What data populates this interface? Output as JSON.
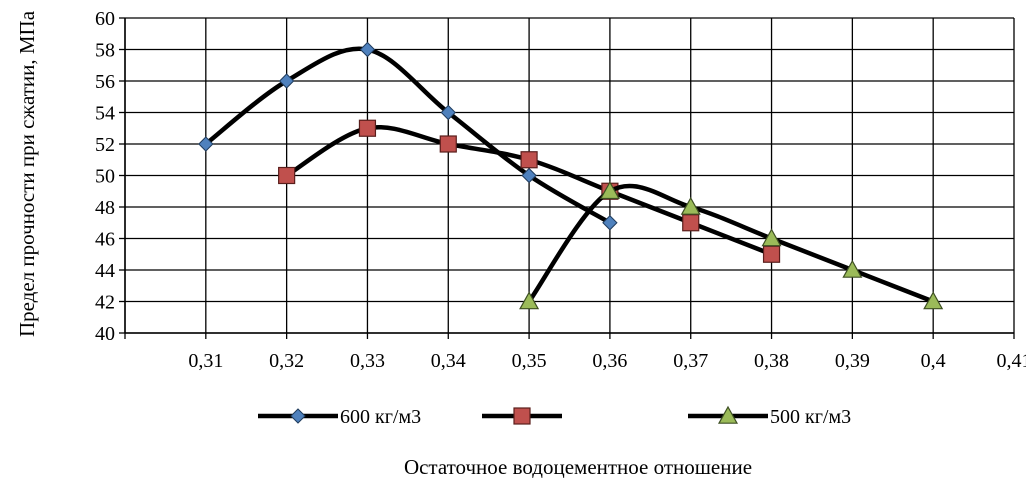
{
  "chart_data": {
    "type": "line",
    "xlabel": "Остаточное водоцементное отношение",
    "ylabel": "Предел прочности при сжатии, МПа",
    "xlim": [
      0.3,
      0.41
    ],
    "ylim": [
      40,
      60
    ],
    "x_ticks": [
      "0,31",
      "0,32",
      "0,33",
      "0,34",
      "0,35",
      "0,36",
      "0,37",
      "0,38",
      "0,39",
      "0,4",
      "0,41"
    ],
    "y_ticks": [
      "40",
      "42",
      "44",
      "46",
      "48",
      "50",
      "52",
      "54",
      "56",
      "58",
      "60"
    ],
    "grid": true,
    "legend_position": "bottom",
    "series": [
      {
        "name": "600 кг/м3",
        "marker": "diamond",
        "marker_color": "#4F81BD",
        "line_color": "#000000",
        "x": [
          0.31,
          0.32,
          0.33,
          0.34,
          0.35,
          0.36
        ],
        "y": [
          52,
          56,
          58,
          54,
          50,
          47
        ]
      },
      {
        "name": "",
        "marker": "square",
        "marker_color": "#C0504D",
        "line_color": "#000000",
        "x": [
          0.32,
          0.33,
          0.34,
          0.35,
          0.36,
          0.37,
          0.38
        ],
        "y": [
          50,
          53,
          52,
          51,
          49,
          47,
          45
        ]
      },
      {
        "name": "500 кг/м3",
        "marker": "triangle",
        "marker_color": "#9BBB59",
        "line_color": "#000000",
        "x": [
          0.35,
          0.36,
          0.37,
          0.38,
          0.39,
          0.4
        ],
        "y": [
          42,
          49,
          48,
          46,
          44,
          42
        ]
      }
    ]
  }
}
